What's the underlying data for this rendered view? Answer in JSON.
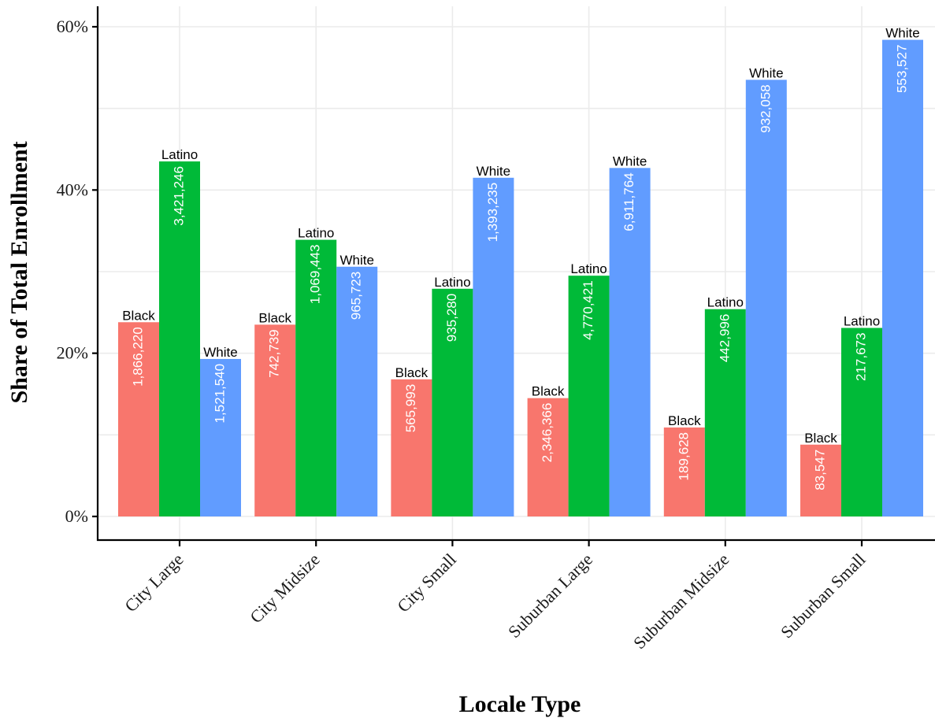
{
  "chart_data": {
    "type": "bar",
    "title": "",
    "xlabel": "Locale Type",
    "ylabel": "Share of Total Enrollment",
    "ylim": [
      0,
      0.62
    ],
    "yticks": [
      0,
      0.2,
      0.4,
      0.6
    ],
    "ytick_labels": [
      "0%",
      "20%",
      "40%",
      "60%"
    ],
    "grid": true,
    "legend": "none",
    "categories": [
      "City Large",
      "City Midsize",
      "City Small",
      "Suburban Large",
      "Suburban Midsize",
      "Suburban Small"
    ],
    "series": [
      {
        "name": "Black",
        "color": "#F8766D",
        "values": [
          0.238,
          0.235,
          0.168,
          0.145,
          0.109,
          0.088
        ],
        "counts": [
          "1,866,220",
          "742,739",
          "565,993",
          "2,346,366",
          "189,628",
          "83,547"
        ]
      },
      {
        "name": "Latino",
        "color": "#00BA38",
        "values": [
          0.435,
          0.339,
          0.279,
          0.295,
          0.254,
          0.231
        ],
        "counts": [
          "3,421,246",
          "1,069,443",
          "935,280",
          "4,770,421",
          "442,996",
          "217,673"
        ]
      },
      {
        "name": "White",
        "color": "#619CFF",
        "values": [
          0.193,
          0.306,
          0.415,
          0.427,
          0.535,
          0.584
        ],
        "counts": [
          "1,521,540",
          "965,723",
          "1,393,235",
          "6,911,764",
          "932,058",
          "553,527"
        ]
      }
    ]
  }
}
